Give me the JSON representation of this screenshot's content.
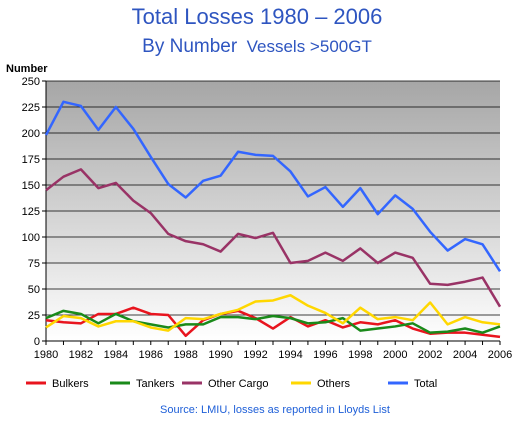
{
  "chart_data": {
    "type": "line",
    "title": "Total Losses 1980 – 2006",
    "subtitle_main": "By Number",
    "subtitle_detail": "Vessels >500GT",
    "ylabel": "Number",
    "xlabel": "",
    "ylim": [
      0,
      250
    ],
    "xlim": [
      1980,
      2006
    ],
    "y_ticks": [
      "0",
      "25",
      "50",
      "75",
      "100",
      "125",
      "150",
      "175",
      "200",
      "225",
      "250"
    ],
    "x_ticks": [
      "1980",
      "1982",
      "1984",
      "1986",
      "1988",
      "1990",
      "1992",
      "1994",
      "1996",
      "1998",
      "2000",
      "2002",
      "2004",
      "2006"
    ],
    "grid": true,
    "legend_position": "bottom",
    "x": [
      1980,
      1981,
      1982,
      1983,
      1984,
      1985,
      1986,
      1987,
      1988,
      1989,
      1990,
      1991,
      1992,
      1993,
      1994,
      1995,
      1996,
      1997,
      1998,
      1999,
      2000,
      2001,
      2002,
      2003,
      2004,
      2005,
      2006
    ],
    "series": [
      {
        "name": "Bulkers",
        "color": "#e8141e",
        "values": [
          20,
          18,
          17,
          26,
          26,
          32,
          26,
          25,
          5,
          20,
          26,
          29,
          22,
          12,
          23,
          14,
          20,
          13,
          18,
          16,
          20,
          12,
          7,
          8,
          8,
          6,
          4
        ]
      },
      {
        "name": "Tankers",
        "color": "#1a8a1a",
        "values": [
          22,
          29,
          26,
          17,
          26,
          19,
          16,
          13,
          16,
          16,
          23,
          23,
          21,
          24,
          22,
          17,
          18,
          22,
          10,
          12,
          14,
          17,
          8,
          9,
          12,
          8,
          14
        ]
      },
      {
        "name": "Other Cargo",
        "color": "#993366",
        "values": [
          145,
          158,
          165,
          147,
          152,
          135,
          123,
          103,
          96,
          93,
          86,
          103,
          99,
          104,
          75,
          77,
          85,
          77,
          89,
          75,
          85,
          80,
          55,
          54,
          57,
          61,
          33
        ]
      },
      {
        "name": "Others",
        "color": "#ffd700",
        "values": [
          13,
          24,
          22,
          14,
          19,
          19,
          13,
          10,
          22,
          21,
          26,
          30,
          38,
          39,
          44,
          34,
          27,
          17,
          32,
          21,
          23,
          20,
          37,
          16,
          23,
          18,
          16
        ]
      },
      {
        "name": "Total",
        "color": "#3366ff",
        "values": [
          198,
          230,
          226,
          203,
          225,
          204,
          177,
          151,
          138,
          154,
          159,
          182,
          179,
          178,
          163,
          139,
          148,
          129,
          147,
          122,
          140,
          127,
          105,
          87,
          98,
          93,
          67
        ]
      }
    ],
    "source": "Source: LMIU, losses as reported in Lloyds List"
  }
}
